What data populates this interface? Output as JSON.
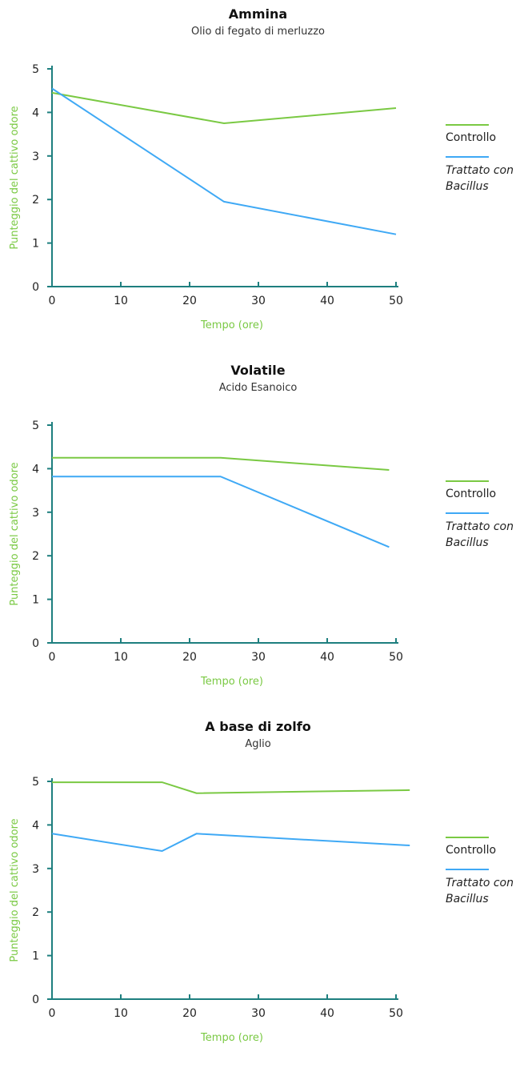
{
  "colors": {
    "axis": "#1e7f7f",
    "controllo": "#7ac943",
    "trattato": "#3fa9f5",
    "axis_title": "#7ac943"
  },
  "legend": {
    "controllo": "Controllo",
    "trattato_line1": "Trattato con",
    "trattato_line2": "Bacillus"
  },
  "chart_data": [
    {
      "type": "line",
      "title": "Ammina",
      "subtitle": "Olio di fegato di merluzzo",
      "xlabel": "Tempo (ore)",
      "ylabel": "Punteggio del cattivo odore",
      "xlim": [
        0,
        50
      ],
      "ylim": [
        0,
        5
      ],
      "xticks": [
        0,
        10,
        20,
        30,
        40,
        50
      ],
      "yticks": [
        0,
        1,
        2,
        3,
        4,
        5
      ],
      "series": [
        {
          "name": "Controllo",
          "color": "#7ac943",
          "x": [
            0,
            25,
            50
          ],
          "y": [
            4.45,
            3.75,
            4.1
          ]
        },
        {
          "name": "Trattato con Bacillus",
          "color": "#3fa9f5",
          "x": [
            0,
            25,
            50
          ],
          "y": [
            4.55,
            1.95,
            1.2
          ]
        }
      ]
    },
    {
      "type": "line",
      "title": "Volatile",
      "subtitle": "Acido Esanoico",
      "xlabel": "Tempo (ore)",
      "ylabel": "Punteggio del cattivo odore",
      "xlim": [
        0,
        50
      ],
      "ylim": [
        0,
        5
      ],
      "xticks": [
        0,
        10,
        20,
        30,
        40,
        50
      ],
      "yticks": [
        0,
        1,
        2,
        3,
        4,
        5
      ],
      "series": [
        {
          "name": "Controllo",
          "color": "#7ac943",
          "x": [
            0,
            24.5,
            49
          ],
          "y": [
            4.25,
            4.25,
            3.97
          ]
        },
        {
          "name": "Trattato con Bacillus",
          "color": "#3fa9f5",
          "x": [
            0,
            24.5,
            49
          ],
          "y": [
            3.82,
            3.82,
            2.2
          ]
        }
      ]
    },
    {
      "type": "line",
      "title": "A base di zolfo",
      "subtitle": "Aglio",
      "xlabel": "Tempo (ore)",
      "ylabel": "Punteggio del cattivo odore",
      "xlim": [
        0,
        50
      ],
      "ylim": [
        0,
        5
      ],
      "xticks": [
        0,
        10,
        20,
        30,
        40,
        50
      ],
      "yticks": [
        0,
        1,
        2,
        3,
        4,
        5
      ],
      "series": [
        {
          "name": "Controllo",
          "color": "#7ac943",
          "x": [
            0,
            16,
            21,
            52
          ],
          "y": [
            4.98,
            4.98,
            4.73,
            4.8
          ]
        },
        {
          "name": "Trattato con Bacillus",
          "color": "#3fa9f5",
          "x": [
            0,
            16,
            21,
            52
          ],
          "y": [
            3.8,
            3.4,
            3.8,
            3.53
          ]
        }
      ]
    }
  ]
}
